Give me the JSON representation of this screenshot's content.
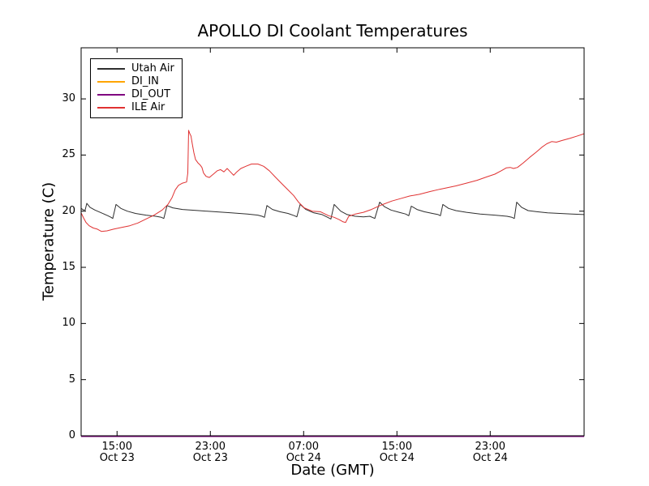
{
  "chart_data": {
    "type": "line",
    "title": "APOLLO DI Coolant Temperatures",
    "xlabel": "Date (GMT)",
    "ylabel": "Temperature (C)",
    "x_unit": "hours after Oct 23 15:00 GMT",
    "xlim": [
      -3.08,
      40.05
    ],
    "ylim": [
      0,
      34.55
    ],
    "grid": false,
    "legend_position": "upper left",
    "axis_color": "#000000",
    "background_color": "#ffffff",
    "yticks": [
      {
        "value": 0,
        "label": "0"
      },
      {
        "value": 5,
        "label": "5"
      },
      {
        "value": 10,
        "label": "10"
      },
      {
        "value": 15,
        "label": "15"
      },
      {
        "value": 20,
        "label": "20"
      },
      {
        "value": 25,
        "label": "25"
      },
      {
        "value": 30,
        "label": "30"
      }
    ],
    "xticks": [
      {
        "value": 0,
        "time": "15:00",
        "date": "Oct 23"
      },
      {
        "value": 8,
        "time": "23:00",
        "date": "Oct 23"
      },
      {
        "value": 16,
        "time": "07:00",
        "date": "Oct 24"
      },
      {
        "value": 24,
        "time": "15:00",
        "date": "Oct 24"
      },
      {
        "value": 32,
        "time": "23:00",
        "date": "Oct 24"
      }
    ],
    "series": [
      {
        "name": "Utah Air",
        "color": "#2e2e2e",
        "points": [
          [
            -3.08,
            20.25
          ],
          [
            -2.87,
            20.1
          ],
          [
            -2.73,
            20.1
          ],
          [
            -2.59,
            20.7
          ],
          [
            -2.32,
            20.35
          ],
          [
            -1.9,
            20.1
          ],
          [
            -1.34,
            19.85
          ],
          [
            -0.79,
            19.6
          ],
          [
            -0.51,
            19.45
          ],
          [
            -0.37,
            19.35
          ],
          [
            -0.09,
            20.6
          ],
          [
            0.33,
            20.25
          ],
          [
            0.88,
            20.0
          ],
          [
            1.58,
            19.8
          ],
          [
            2.48,
            19.65
          ],
          [
            3.32,
            19.55
          ],
          [
            3.8,
            19.45
          ],
          [
            4.01,
            19.35
          ],
          [
            4.29,
            20.5
          ],
          [
            4.78,
            20.3
          ],
          [
            5.61,
            20.15
          ],
          [
            7.0,
            20.05
          ],
          [
            8.4,
            19.95
          ],
          [
            9.79,
            19.85
          ],
          [
            11.18,
            19.75
          ],
          [
            12.08,
            19.65
          ],
          [
            12.43,
            19.55
          ],
          [
            12.64,
            19.45
          ],
          [
            12.85,
            20.5
          ],
          [
            13.33,
            20.15
          ],
          [
            13.96,
            19.95
          ],
          [
            14.66,
            19.8
          ],
          [
            15.21,
            19.6
          ],
          [
            15.42,
            19.5
          ],
          [
            15.7,
            20.6
          ],
          [
            16.19,
            20.15
          ],
          [
            16.88,
            19.85
          ],
          [
            17.58,
            19.7
          ],
          [
            18.06,
            19.45
          ],
          [
            18.34,
            19.3
          ],
          [
            18.62,
            20.6
          ],
          [
            19.18,
            20.0
          ],
          [
            19.73,
            19.7
          ],
          [
            20.43,
            19.55
          ],
          [
            21.13,
            19.5
          ],
          [
            21.68,
            19.55
          ],
          [
            22.1,
            19.35
          ],
          [
            22.52,
            20.8
          ],
          [
            22.94,
            20.4
          ],
          [
            23.49,
            20.1
          ],
          [
            24.19,
            19.9
          ],
          [
            24.74,
            19.75
          ],
          [
            25.02,
            19.6
          ],
          [
            25.23,
            20.45
          ],
          [
            25.72,
            20.15
          ],
          [
            26.34,
            19.95
          ],
          [
            27.04,
            19.8
          ],
          [
            27.53,
            19.7
          ],
          [
            27.73,
            19.6
          ],
          [
            27.94,
            20.6
          ],
          [
            28.43,
            20.25
          ],
          [
            29.06,
            20.05
          ],
          [
            29.96,
            19.9
          ],
          [
            31.14,
            19.75
          ],
          [
            32.4,
            19.65
          ],
          [
            33.44,
            19.55
          ],
          [
            33.86,
            19.45
          ],
          [
            34.07,
            19.35
          ],
          [
            34.27,
            20.8
          ],
          [
            34.69,
            20.35
          ],
          [
            35.25,
            20.05
          ],
          [
            36.01,
            19.95
          ],
          [
            36.92,
            19.85
          ],
          [
            37.96,
            19.8
          ],
          [
            39.0,
            19.75
          ],
          [
            40.05,
            19.7
          ]
        ]
      },
      {
        "name": "DI_IN",
        "color": "#ffa500",
        "points": [
          [
            -3.08,
            0
          ],
          [
            40.05,
            0
          ]
        ]
      },
      {
        "name": "DI_OUT",
        "color": "#800080",
        "points": [
          [
            -3.08,
            0
          ],
          [
            40.05,
            0
          ]
        ]
      },
      {
        "name": "ILE Air",
        "color": "#e03232",
        "points": [
          [
            -3.08,
            19.85
          ],
          [
            -2.87,
            19.4
          ],
          [
            -2.66,
            19.0
          ],
          [
            -2.39,
            18.7
          ],
          [
            -2.04,
            18.5
          ],
          [
            -1.69,
            18.4
          ],
          [
            -1.34,
            18.2
          ],
          [
            -0.86,
            18.25
          ],
          [
            -0.3,
            18.4
          ],
          [
            0.4,
            18.55
          ],
          [
            1.09,
            18.7
          ],
          [
            1.79,
            18.95
          ],
          [
            2.48,
            19.3
          ],
          [
            3.18,
            19.65
          ],
          [
            3.87,
            20.1
          ],
          [
            4.36,
            20.6
          ],
          [
            4.71,
            21.2
          ],
          [
            4.99,
            21.9
          ],
          [
            5.27,
            22.3
          ],
          [
            5.61,
            22.5
          ],
          [
            5.96,
            22.6
          ],
          [
            6.07,
            23.4
          ],
          [
            6.14,
            27.2
          ],
          [
            6.24,
            26.9
          ],
          [
            6.34,
            26.7
          ],
          [
            6.45,
            26.0
          ],
          [
            6.59,
            25.2
          ],
          [
            6.73,
            24.6
          ],
          [
            6.94,
            24.3
          ],
          [
            7.14,
            24.1
          ],
          [
            7.28,
            23.9
          ],
          [
            7.42,
            23.4
          ],
          [
            7.63,
            23.1
          ],
          [
            7.91,
            23.0
          ],
          [
            8.26,
            23.3
          ],
          [
            8.6,
            23.6
          ],
          [
            8.88,
            23.7
          ],
          [
            9.16,
            23.5
          ],
          [
            9.44,
            23.8
          ],
          [
            9.72,
            23.5
          ],
          [
            10.0,
            23.2
          ],
          [
            10.27,
            23.5
          ],
          [
            10.62,
            23.8
          ],
          [
            11.04,
            24.0
          ],
          [
            11.53,
            24.2
          ],
          [
            12.08,
            24.2
          ],
          [
            12.57,
            24.0
          ],
          [
            13.06,
            23.6
          ],
          [
            13.61,
            23.0
          ],
          [
            14.17,
            22.4
          ],
          [
            14.66,
            21.9
          ],
          [
            15.14,
            21.4
          ],
          [
            15.56,
            20.8
          ],
          [
            16.05,
            20.3
          ],
          [
            16.74,
            20.0
          ],
          [
            17.44,
            19.95
          ],
          [
            18.14,
            19.6
          ],
          [
            18.62,
            19.45
          ],
          [
            19.04,
            19.25
          ],
          [
            19.39,
            19.05
          ],
          [
            19.6,
            19.0
          ],
          [
            19.87,
            19.55
          ],
          [
            20.43,
            19.75
          ],
          [
            21.13,
            19.9
          ],
          [
            21.82,
            20.15
          ],
          [
            22.66,
            20.55
          ],
          [
            23.56,
            20.9
          ],
          [
            24.4,
            21.15
          ],
          [
            25.09,
            21.35
          ],
          [
            25.93,
            21.5
          ],
          [
            26.83,
            21.75
          ],
          [
            27.66,
            21.95
          ],
          [
            28.36,
            22.1
          ],
          [
            29.06,
            22.25
          ],
          [
            29.96,
            22.5
          ],
          [
            30.87,
            22.75
          ],
          [
            31.7,
            23.05
          ],
          [
            32.4,
            23.3
          ],
          [
            32.95,
            23.6
          ],
          [
            33.37,
            23.85
          ],
          [
            33.72,
            23.9
          ],
          [
            34.0,
            23.8
          ],
          [
            34.34,
            23.9
          ],
          [
            34.83,
            24.3
          ],
          [
            35.39,
            24.8
          ],
          [
            35.94,
            25.25
          ],
          [
            36.43,
            25.7
          ],
          [
            36.85,
            26.0
          ],
          [
            37.27,
            26.2
          ],
          [
            37.68,
            26.15
          ],
          [
            38.17,
            26.3
          ],
          [
            38.87,
            26.5
          ],
          [
            39.49,
            26.7
          ],
          [
            40.05,
            26.9
          ]
        ]
      }
    ]
  }
}
